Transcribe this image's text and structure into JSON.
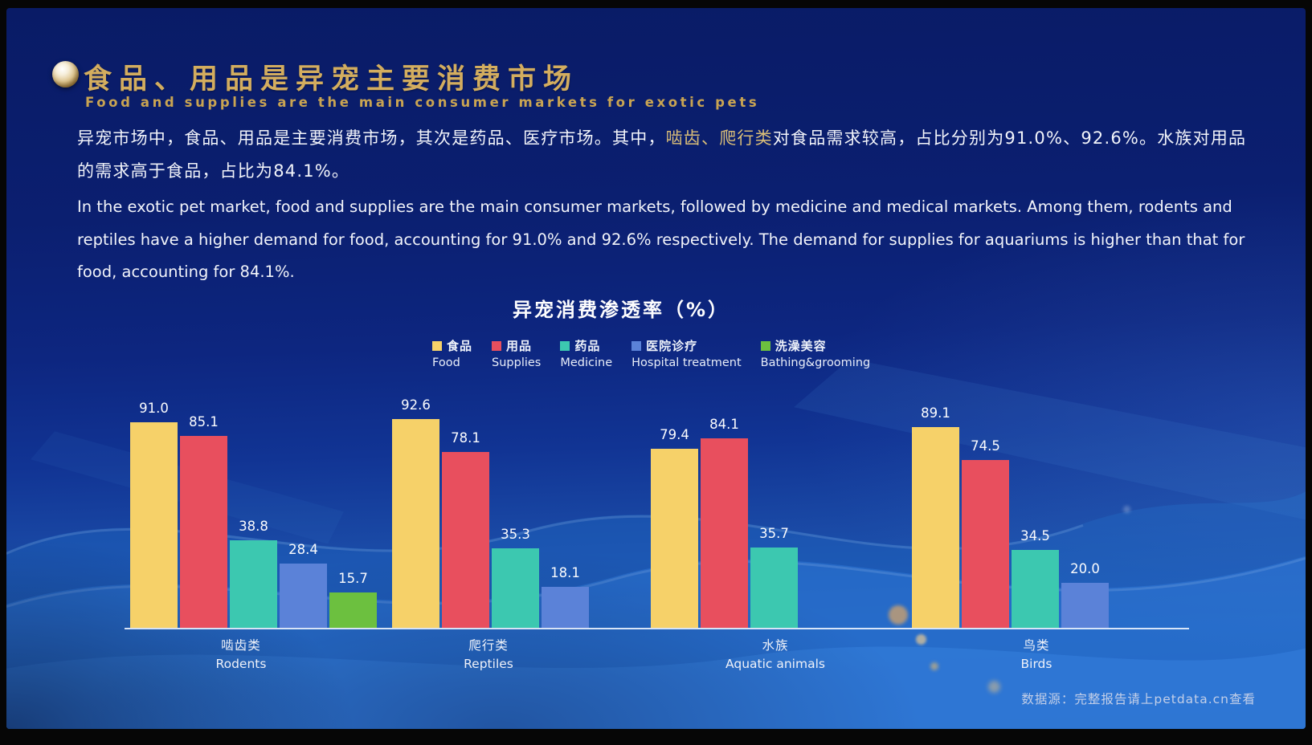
{
  "header": {
    "title": "食品、用品是异宠主要消费市场",
    "subtitle": "Food and supplies are the main consumer markets for exotic pets"
  },
  "body_text": {
    "cn_before": "异宠市场中，食品、用品是主要消费市场，其次是药品、医疗市场。其中，",
    "cn_highlight": "啮齿、爬行类",
    "cn_after": "对食品需求较高，占比分别为91.0%、92.6%。水族对用品的需求高于食品，占比为84.1%。",
    "en": "In the exotic pet market, food and supplies are the main consumer markets, followed by medicine and medical markets. Among them, rodents and reptiles have a higher demand for food, accounting for 91.0% and 92.6% respectively. The demand for supplies for aquariums is higher than that for food, accounting for 84.1%."
  },
  "chart_data": {
    "type": "bar",
    "title": "异宠消费渗透率（%）",
    "categories": [
      {
        "cn": "啮齿类",
        "en": "Rodents"
      },
      {
        "cn": "爬行类",
        "en": "Reptiles"
      },
      {
        "cn": "水族",
        "en": "Aquatic animals"
      },
      {
        "cn": "鸟类",
        "en": "Birds"
      }
    ],
    "series": [
      {
        "name_cn": "食品",
        "name_en": "Food",
        "color": "#f6d169",
        "values": [
          91.0,
          92.6,
          79.4,
          89.1
        ]
      },
      {
        "name_cn": "用品",
        "name_en": "Supplies",
        "color": "#e84f5e",
        "values": [
          85.1,
          78.1,
          84.1,
          74.5
        ]
      },
      {
        "name_cn": "药品",
        "name_en": "Medicine",
        "color": "#3cc8b0",
        "values": [
          38.8,
          35.3,
          35.7,
          34.5
        ]
      },
      {
        "name_cn": "医院诊疗",
        "name_en": "Hospital treatment",
        "color": "#5b82d8",
        "values": [
          28.4,
          18.1,
          null,
          20.0
        ]
      },
      {
        "name_cn": "洗澡美容",
        "name_en": "Bathing&grooming",
        "color": "#6cc03f",
        "values": [
          15.7,
          null,
          null,
          null
        ]
      }
    ],
    "ylim": [
      0,
      100
    ],
    "grid": false,
    "legend_position": "top",
    "value_labels": true
  },
  "footer": {
    "source": "数据源：完整报告请上petdata.cn查看"
  },
  "colors": {
    "title_gold": "#d3ad5f",
    "background_navy": "#0b1f70",
    "wave_blue": "#2d78d8"
  }
}
